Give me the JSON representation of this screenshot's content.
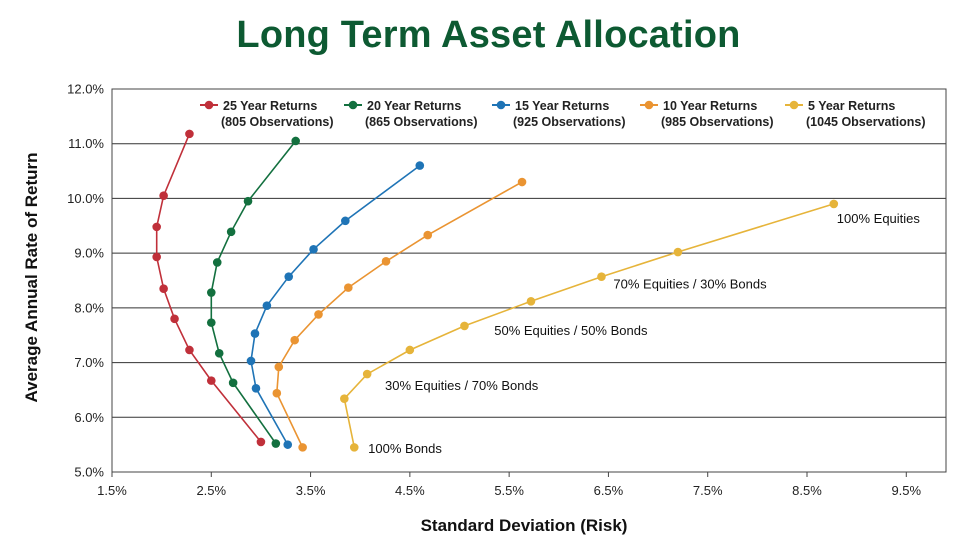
{
  "chart_data": {
    "type": "line",
    "title": "Long Term Asset Allocation",
    "xlabel": "Standard Deviation (Risk)",
    "ylabel": "Average Annual Rate of Return",
    "xlim": [
      1.5,
      9.9
    ],
    "ylim": [
      5.0,
      12.0
    ],
    "xticks": [
      "1.5%",
      "2.5%",
      "3.5%",
      "4.5%",
      "5.5%",
      "6.5%",
      "7.5%",
      "8.5%",
      "9.5%"
    ],
    "xtick_values": [
      1.5,
      2.5,
      3.5,
      4.5,
      5.5,
      6.5,
      7.5,
      8.5,
      9.5
    ],
    "yticks": [
      "5.0%",
      "6.0%",
      "7.0%",
      "8.0%",
      "9.0%",
      "10.0%",
      "11.0%",
      "12.0%"
    ],
    "ytick_values": [
      5.0,
      6.0,
      7.0,
      8.0,
      9.0,
      10.0,
      11.0,
      12.0
    ],
    "grid": "horizontal",
    "legend_position": "top",
    "series": [
      {
        "name": "25 Year Returns",
        "sub": "(805 Observations)",
        "color": "#c0303a",
        "points": [
          [
            3.0,
            5.55
          ],
          [
            2.5,
            6.67
          ],
          [
            2.28,
            7.23
          ],
          [
            2.13,
            7.8
          ],
          [
            2.02,
            8.35
          ],
          [
            1.95,
            8.93
          ],
          [
            1.95,
            9.48
          ],
          [
            2.02,
            10.05
          ],
          [
            2.28,
            11.18
          ]
        ]
      },
      {
        "name": "20 Year Returns",
        "sub": "(865 Observations)",
        "color": "#13703f",
        "points": [
          [
            3.15,
            5.52
          ],
          [
            2.72,
            6.63
          ],
          [
            2.58,
            7.17
          ],
          [
            2.5,
            7.73
          ],
          [
            2.5,
            8.28
          ],
          [
            2.56,
            8.83
          ],
          [
            2.7,
            9.39
          ],
          [
            2.87,
            9.95
          ],
          [
            3.35,
            11.05
          ]
        ]
      },
      {
        "name": "15 Year Returns",
        "sub": "(925 Observations)",
        "color": "#1f74b6",
        "points": [
          [
            3.27,
            5.5
          ],
          [
            2.95,
            6.53
          ],
          [
            2.9,
            7.03
          ],
          [
            2.94,
            7.53
          ],
          [
            3.06,
            8.04
          ],
          [
            3.28,
            8.57
          ],
          [
            3.53,
            9.07
          ],
          [
            3.85,
            9.59
          ],
          [
            4.6,
            10.6
          ]
        ]
      },
      {
        "name": "10 Year Returns",
        "sub": "(985 Observations)",
        "color": "#ea9432",
        "points": [
          [
            3.42,
            5.45
          ],
          [
            3.16,
            6.44
          ],
          [
            3.18,
            6.92
          ],
          [
            3.34,
            7.41
          ],
          [
            3.58,
            7.88
          ],
          [
            3.88,
            8.37
          ],
          [
            4.26,
            8.85
          ],
          [
            4.68,
            9.33
          ],
          [
            5.63,
            10.3
          ]
        ]
      },
      {
        "name": "5 Year Returns",
        "sub": "(1045 Observations)",
        "color": "#e6b43a",
        "points": [
          [
            3.94,
            5.45
          ],
          [
            3.84,
            6.34
          ],
          [
            4.07,
            6.79
          ],
          [
            4.5,
            7.23
          ],
          [
            5.05,
            7.67
          ],
          [
            5.72,
            8.12
          ],
          [
            6.43,
            8.57
          ],
          [
            7.2,
            9.02
          ],
          [
            8.77,
            9.9
          ]
        ]
      }
    ],
    "annotations": [
      {
        "text": "100% Equities",
        "x": 8.8,
        "y": 9.55
      },
      {
        "text": "70% Equities / 30% Bonds",
        "x": 6.55,
        "y": 8.35
      },
      {
        "text": "50% Equities / 50% Bonds",
        "x": 5.35,
        "y": 7.5
      },
      {
        "text": "30% Equities / 70% Bonds",
        "x": 4.25,
        "y": 6.5
      },
      {
        "text": "100% Bonds",
        "x": 4.08,
        "y": 5.35
      }
    ]
  }
}
